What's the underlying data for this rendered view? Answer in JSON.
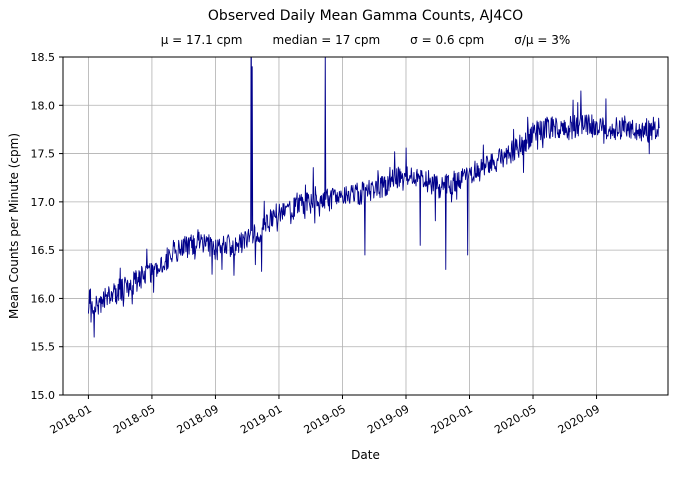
{
  "chart_data": {
    "type": "line",
    "title": "Observed Daily Mean Gamma Counts, AJ4CO",
    "stats": [
      "μ = 17.1 cpm",
      "median = 17 cpm",
      "σ = 0.6 cpm",
      "σ/μ = 3%"
    ],
    "xlabel": "Date",
    "ylabel": "Mean Counts per Minute (cpm)",
    "ylim": [
      15.0,
      18.5
    ],
    "yticks": [
      "15.0",
      "15.5",
      "16.0",
      "16.5",
      "17.0",
      "17.5",
      "18.0",
      "18.5"
    ],
    "xtick_labels": [
      "2018-01",
      "2018-05",
      "2018-09",
      "2019-01",
      "2019-05",
      "2019-09",
      "2020-01",
      "2020-05",
      "2020-09"
    ],
    "xtick_month_offsets": [
      0,
      4,
      8,
      12,
      16,
      20,
      24,
      28,
      32
    ],
    "x_axis_month_range": [
      -1.6,
      36.5
    ],
    "grid": true,
    "line_color": "#00008b",
    "grid_color": "#b0b0b0",
    "series": [
      {
        "name": "daily_mean_gamma_counts",
        "description": "noisy daily series reconstructed from monthly trend anchors plus noise and spikes",
        "months_since_2018_01": [
          0,
          1,
          2,
          3,
          4,
          5,
          6,
          7,
          8,
          9,
          10,
          11,
          12,
          13,
          14,
          15,
          16,
          17,
          18,
          19,
          20,
          21,
          22,
          23,
          24,
          25,
          26,
          27,
          28,
          29,
          30,
          31,
          32,
          33,
          34,
          35,
          36
        ],
        "trend_values": [
          15.85,
          15.98,
          16.08,
          16.18,
          16.3,
          16.42,
          16.52,
          16.6,
          16.5,
          16.55,
          16.6,
          16.72,
          16.9,
          16.97,
          17.0,
          17.02,
          17.05,
          17.08,
          17.12,
          17.2,
          17.28,
          17.25,
          17.15,
          17.2,
          17.28,
          17.35,
          17.45,
          17.55,
          17.7,
          17.78,
          17.75,
          17.8,
          17.78,
          17.75,
          17.78,
          17.74,
          17.78
        ],
        "noise_amplitude_cpm": 0.12,
        "upward_spikes": [
          {
            "month_offset": 10.25,
            "value": 19.5
          },
          {
            "month_offset": 10.32,
            "value": 18.4
          },
          {
            "month_offset": 14.9,
            "value": 18.6
          }
        ],
        "downward_spikes": [
          {
            "month_offset": 0.35,
            "value": 15.6
          },
          {
            "month_offset": 7.8,
            "value": 16.25
          },
          {
            "month_offset": 8.4,
            "value": 16.3
          },
          {
            "month_offset": 10.9,
            "value": 16.28
          },
          {
            "month_offset": 10.5,
            "value": 16.35
          },
          {
            "month_offset": 17.4,
            "value": 16.45
          },
          {
            "month_offset": 20.9,
            "value": 16.55
          },
          {
            "month_offset": 22.5,
            "value": 16.3
          },
          {
            "month_offset": 23.9,
            "value": 16.45
          }
        ]
      }
    ]
  }
}
